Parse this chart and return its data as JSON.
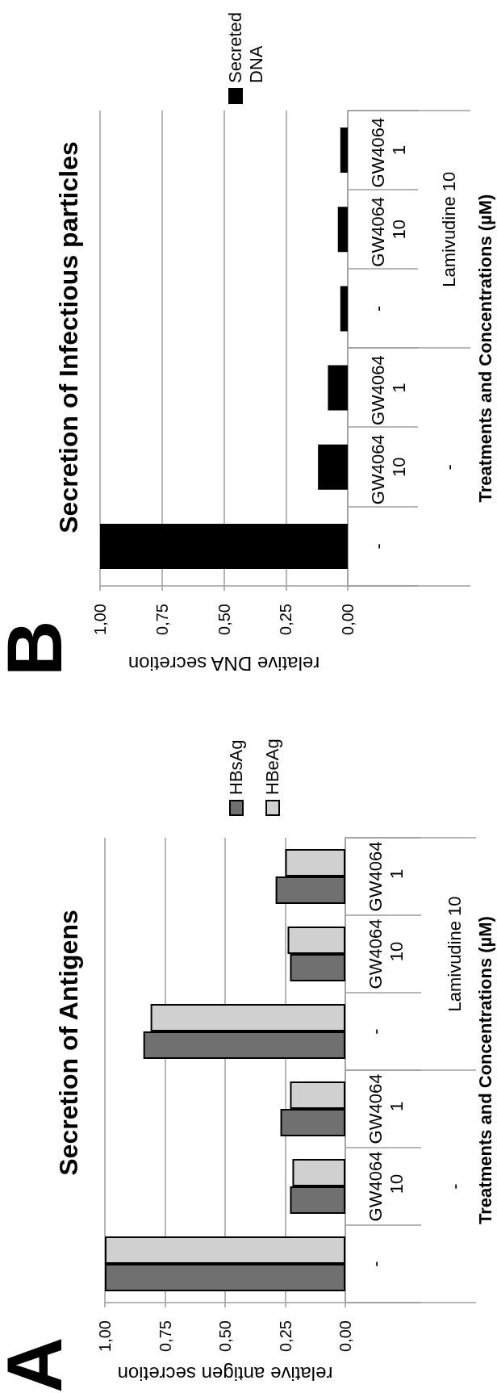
{
  "chart_data": [
    {
      "type": "bar",
      "orientation": "horizontal",
      "title": "Secretion of Antigens",
      "xlabel": "relative antigen secretion",
      "ylabel": "Treatments and Concentrations (µM)",
      "categories": [
        "GW4064 1",
        "GW4064 10",
        "-",
        "GW4064 1",
        "GW4064 10",
        "-"
      ],
      "series": [
        {
          "name": "HBsAg",
          "color": "#707070",
          "values": [
            0.29,
            0.23,
            0.84,
            0.27,
            0.23,
            1.0
          ]
        },
        {
          "name": "HBeAg",
          "color": "#d0d0d0",
          "values": [
            0.25,
            0.24,
            0.81,
            0.23,
            0.22,
            1.0
          ]
        }
      ],
      "xlim": [
        1,
        0
      ],
      "xticks": [
        {
          "value": 1,
          "label": "1,00"
        },
        {
          "value": 0.75,
          "label": "0,75"
        },
        {
          "value": 0.5,
          "label": "0,50"
        },
        {
          "value": 0.25,
          "label": "0,25"
        },
        {
          "value": 0,
          "label": "0,00"
        }
      ],
      "grid": "x",
      "legend": "top",
      "annotations": [
        "A",
        "Lamivudine 10",
        "-"
      ]
    },
    {
      "type": "bar",
      "orientation": "horizontal",
      "title": "Secretion of Infectious particles",
      "xlabel": "relative DNA secretion",
      "ylabel": "Treatments and Concentrations (µM)",
      "categories": [
        "GW4064 1",
        "GW4064 10",
        "-",
        "GW4064 1",
        "GW4064 10",
        "-"
      ],
      "series": [
        {
          "name": "Secreted DNA",
          "color": "#000000",
          "values": [
            0.03,
            0.04,
            0.03,
            0.08,
            0.12,
            1.0
          ]
        }
      ],
      "xlim": [
        1,
        0
      ],
      "xticks": [
        {
          "value": 1,
          "label": "1,00"
        },
        {
          "value": 0.75,
          "label": "0,75"
        },
        {
          "value": 0.5,
          "label": "0,50"
        },
        {
          "value": 0.25,
          "label": "0,25"
        },
        {
          "value": 0,
          "label": "0,00"
        }
      ],
      "grid": "x",
      "legend": "top",
      "annotations": [
        "B",
        "Lamivudine 10",
        "-"
      ]
    }
  ]
}
